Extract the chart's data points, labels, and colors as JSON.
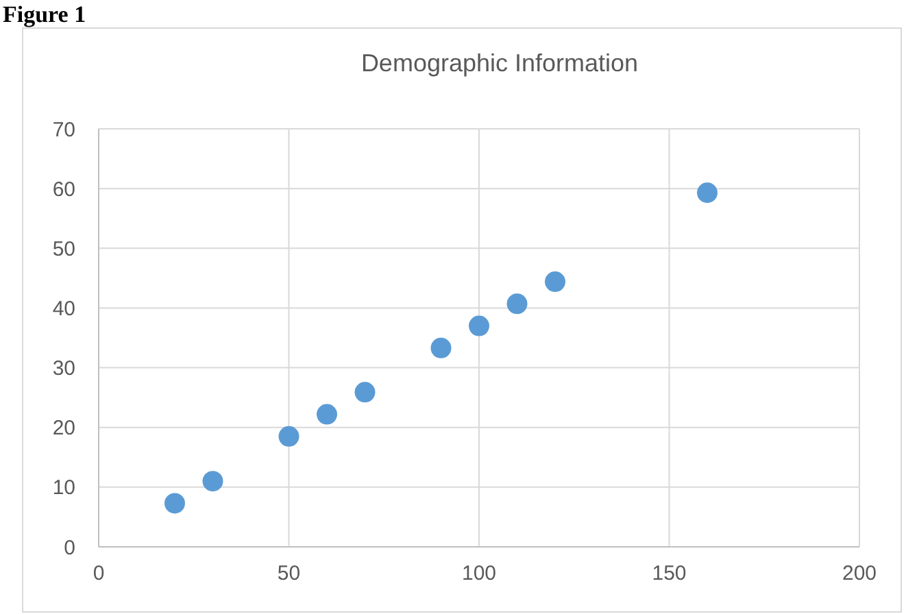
{
  "chart_data": {
    "type": "scatter",
    "title": "Demographic Information",
    "annotations": [
      "Figure 1"
    ],
    "x": [
      20,
      30,
      50,
      60,
      70,
      90,
      100,
      110,
      120,
      160
    ],
    "series": [
      {
        "color": "#5b9bd5",
        "values": [
          7.3,
          11,
          18.5,
          22.2,
          25.9,
          33.3,
          37,
          40.7,
          44.4,
          59.3
        ]
      }
    ],
    "xlim": [
      0,
      200
    ],
    "xticks": [
      0,
      50,
      100,
      150,
      200
    ],
    "ylim": [
      0,
      70
    ],
    "yticks": [
      0,
      10,
      20,
      30,
      40,
      50,
      60,
      70
    ],
    "grid": true,
    "marker": "circle"
  }
}
